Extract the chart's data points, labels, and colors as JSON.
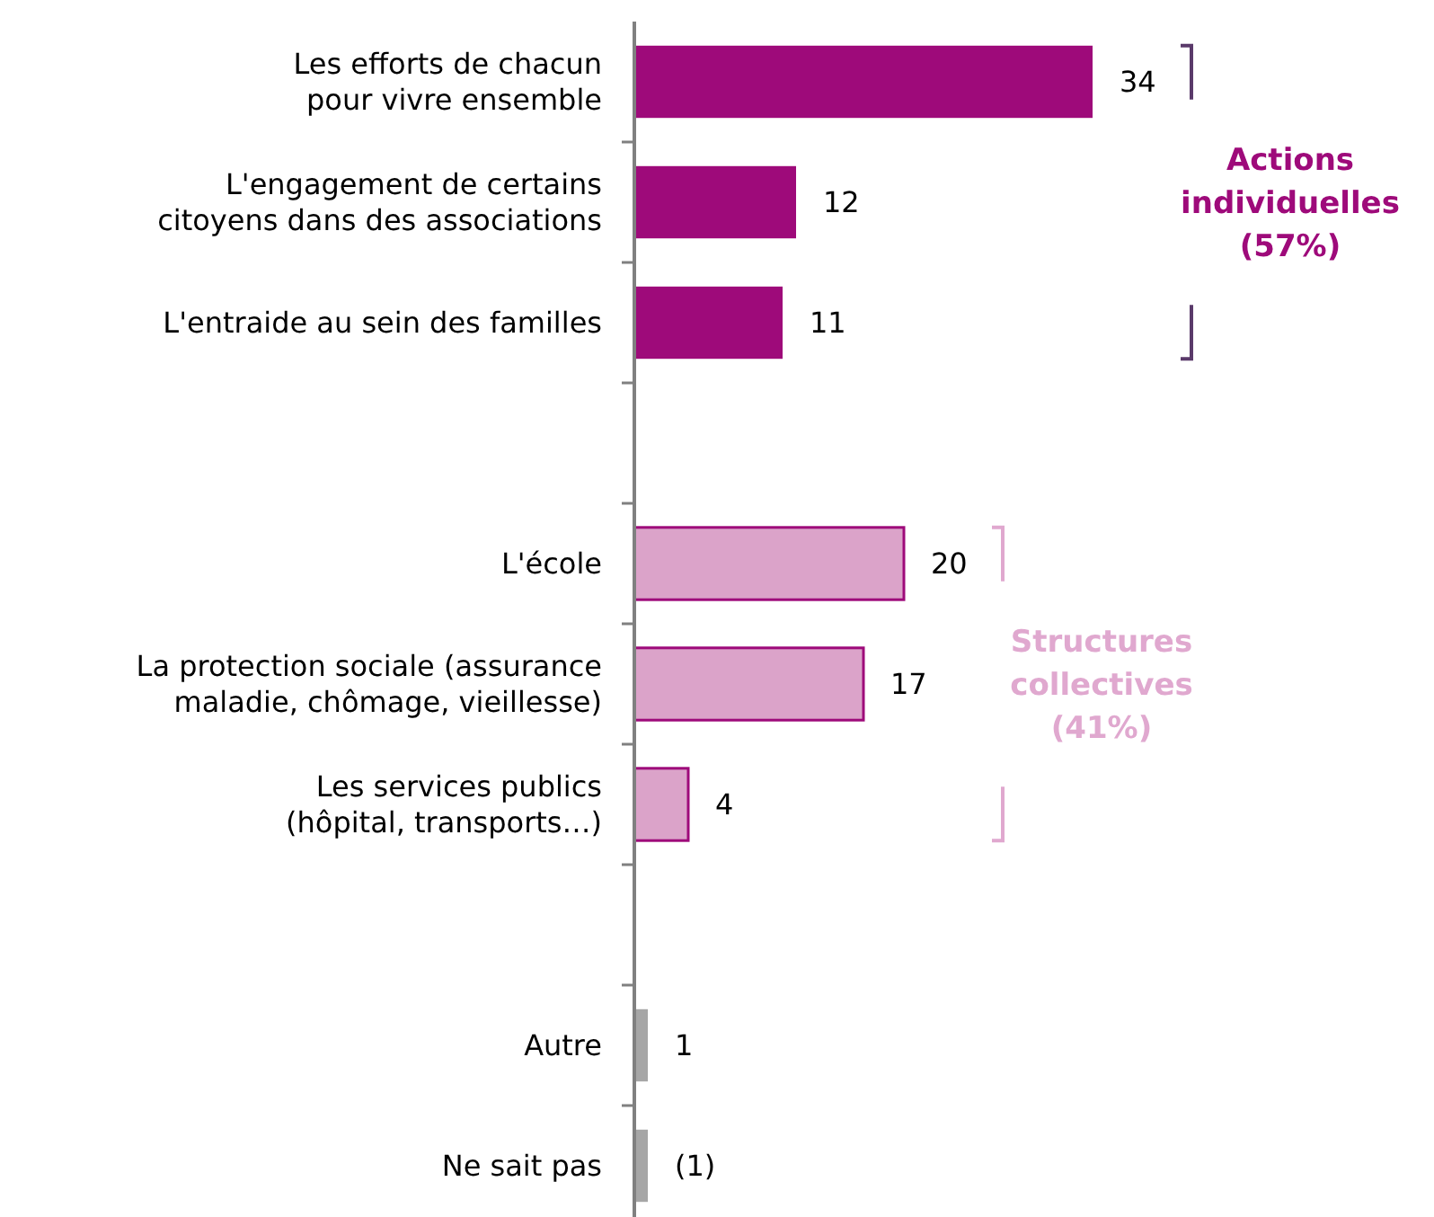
{
  "chart_data": {
    "type": "bar",
    "orientation": "horizontal",
    "categories": [
      "Les efforts de chacun pour vivre ensemble",
      "L'engagement de certains citoyens dans des associations",
      "L'entraide au sein des familles",
      null,
      "L'école",
      "La protection sociale (assurance maladie, chômage, vieillesse)",
      "Les services publics (hôpital, transports…)",
      null,
      "Autre",
      "Ne sait pas"
    ],
    "values": [
      34,
      12,
      11,
      null,
      20,
      17,
      4,
      null,
      1,
      1
    ],
    "colors": [
      "#9e0a7a",
      "#9e0a7a",
      "#9e0a7a",
      null,
      "#dba3c9",
      "#dba3c9",
      "#dba3c9",
      null,
      "#a6a6a6",
      "#a6a6a6"
    ],
    "value_labels": [
      "34",
      "12",
      "11",
      null,
      "20",
      "17",
      "4",
      null,
      "1",
      "(1)"
    ],
    "annotations": [
      "Actions individuelles (57%)",
      "Structures collectives (41%)"
    ]
  }
}
